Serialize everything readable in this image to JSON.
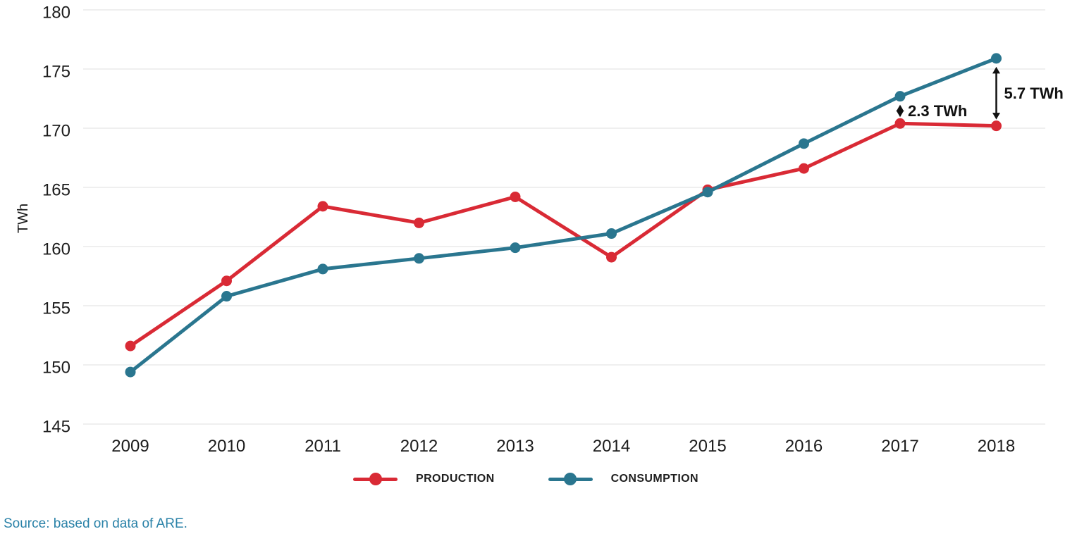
{
  "chart_data": {
    "type": "line",
    "title": "",
    "xlabel": "",
    "ylabel": "TWh",
    "x": [
      2009,
      2010,
      2011,
      2012,
      2013,
      2014,
      2015,
      2016,
      2017,
      2018
    ],
    "ylim": [
      145,
      180
    ],
    "yticks": [
      145,
      150,
      155,
      160,
      165,
      170,
      175,
      180
    ],
    "grid": true,
    "legend_position": "bottom-center",
    "series": [
      {
        "name": "PRODUCTION",
        "color": "#d92a35",
        "values": [
          151.6,
          157.1,
          163.4,
          162.0,
          164.2,
          159.1,
          164.8,
          166.6,
          170.4,
          170.2
        ]
      },
      {
        "name": "CONSUMPTION",
        "color": "#2a768f",
        "values": [
          149.4,
          155.8,
          158.1,
          159.0,
          159.9,
          161.1,
          164.6,
          168.7,
          172.7,
          175.9
        ]
      }
    ],
    "annotations": [
      {
        "text": "2.3 TWh",
        "x": 2017,
        "between": [
          "CONSUMPTION",
          "PRODUCTION"
        ]
      },
      {
        "text": "5.7 TWh",
        "x": 2018,
        "between": [
          "CONSUMPTION",
          "PRODUCTION"
        ]
      }
    ]
  },
  "source": {
    "text": "Source: based on data of ARE."
  },
  "colors": {
    "grid": "#eaeaea",
    "tick_text": "#1c1c1c",
    "annotation": "#111111",
    "source_text": "#2a82a8"
  }
}
